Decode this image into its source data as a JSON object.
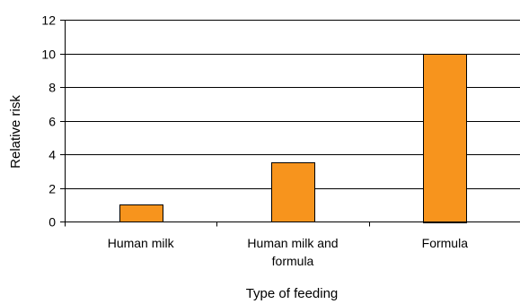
{
  "chart_data": {
    "type": "bar",
    "categories": [
      [
        "Human milk"
      ],
      [
        "Human milk and",
        "formula"
      ],
      [
        "Formula"
      ]
    ],
    "series": [
      {
        "values": [
          1,
          3.5,
          10
        ]
      }
    ],
    "xlabel": "Type of feeding",
    "ylabel": "Relative risk",
    "ylim": [
      0,
      12
    ],
    "yticks": [
      0,
      2,
      4,
      6,
      8,
      10,
      12
    ],
    "grid": true,
    "legend": "none",
    "colors": {
      "bar_fill": "#F7941D",
      "bar_stroke": "#000000",
      "grid": "#000000",
      "axis": "#000000"
    }
  }
}
